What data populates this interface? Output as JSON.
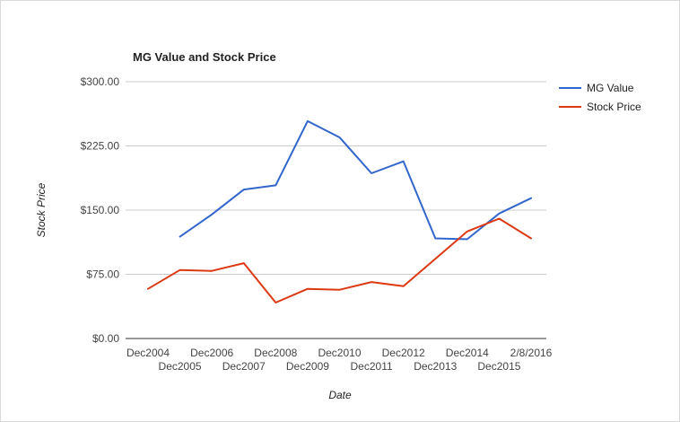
{
  "chart_data": {
    "type": "line",
    "title": "MG Value and Stock Price",
    "xlabel": "Date",
    "ylabel": "Stock Price",
    "categories": [
      "Dec2004",
      "Dec2005",
      "Dec2006",
      "Dec2007",
      "Dec2008",
      "Dec2009",
      "Dec2010",
      "Dec2011",
      "Dec2012",
      "Dec2013",
      "Dec2014",
      "Dec2015",
      "2/8/2016"
    ],
    "y_ticks": [
      "$0.00",
      "$75.00",
      "$150.00",
      "$225.00",
      "$300.00"
    ],
    "ylim": [
      0,
      300
    ],
    "grid": true,
    "legend_position": "right",
    "series": [
      {
        "name": "MG Value",
        "color": "#3366cc",
        "values": [
          null,
          119,
          145,
          174,
          179,
          254,
          235,
          193,
          207,
          117,
          116,
          146,
          164
        ]
      },
      {
        "name": "Stock Price",
        "color": "#dc3912",
        "values": [
          58,
          80,
          79,
          88,
          42,
          58,
          57,
          66,
          61,
          93,
          125,
          140,
          117
        ]
      }
    ]
  }
}
